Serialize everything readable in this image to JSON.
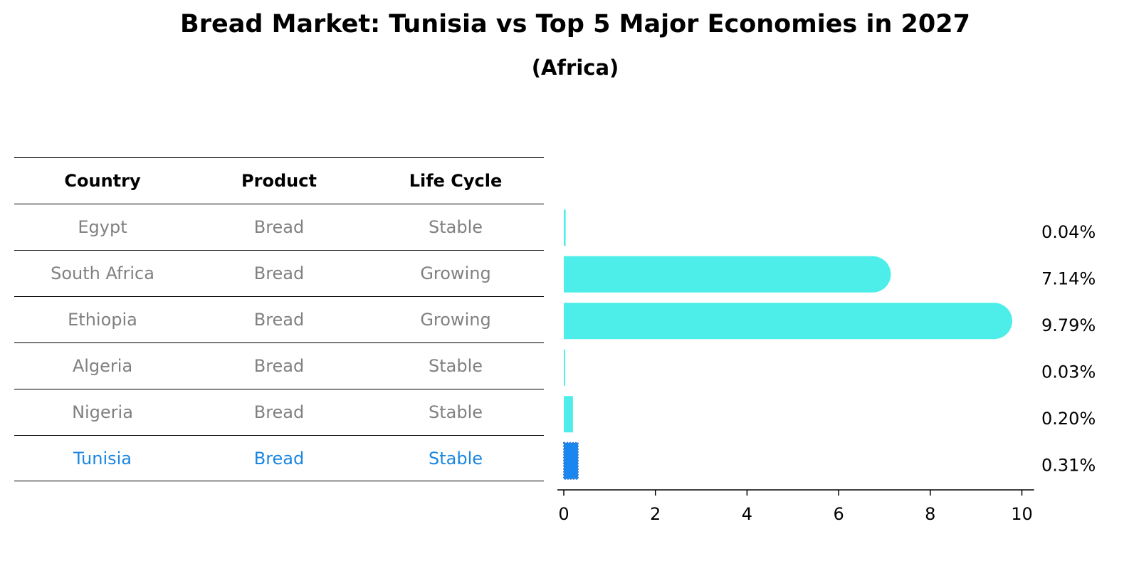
{
  "title": "Bread Market: Tunisia vs Top 5 Major Economies in 2027",
  "subtitle": "(Africa)",
  "table": {
    "headers": [
      "Country",
      "Product",
      "Life Cycle"
    ],
    "rows": [
      [
        "Egypt",
        "Bread",
        "Stable"
      ],
      [
        "South Africa",
        "Bread",
        "Growing"
      ],
      [
        "Ethiopia",
        "Bread",
        "Growing"
      ],
      [
        "Algeria",
        "Bread",
        "Stable"
      ],
      [
        "Nigeria",
        "Bread",
        "Stable"
      ],
      [
        "Tunisia",
        "Bread",
        "Stable"
      ]
    ]
  },
  "colors": {
    "bar": "#4deeea",
    "highlight": "#1a86f0",
    "muted_text": "#808080",
    "highlight_text": "#1a86e0"
  },
  "chart_data": {
    "type": "bar",
    "orientation": "horizontal",
    "categories": [
      "Egypt",
      "South Africa",
      "Ethiopia",
      "Algeria",
      "Nigeria",
      "Tunisia"
    ],
    "values": [
      0.04,
      7.14,
      9.79,
      0.03,
      0.2,
      0.31
    ],
    "value_labels": [
      "0.04%",
      "7.14%",
      "9.79%",
      "0.03%",
      "0.20%",
      "0.31%"
    ],
    "highlight": "Tunisia",
    "xlim": [
      0,
      10.25
    ],
    "xticks": [
      0,
      2,
      4,
      6,
      8,
      10
    ],
    "grid": false
  }
}
